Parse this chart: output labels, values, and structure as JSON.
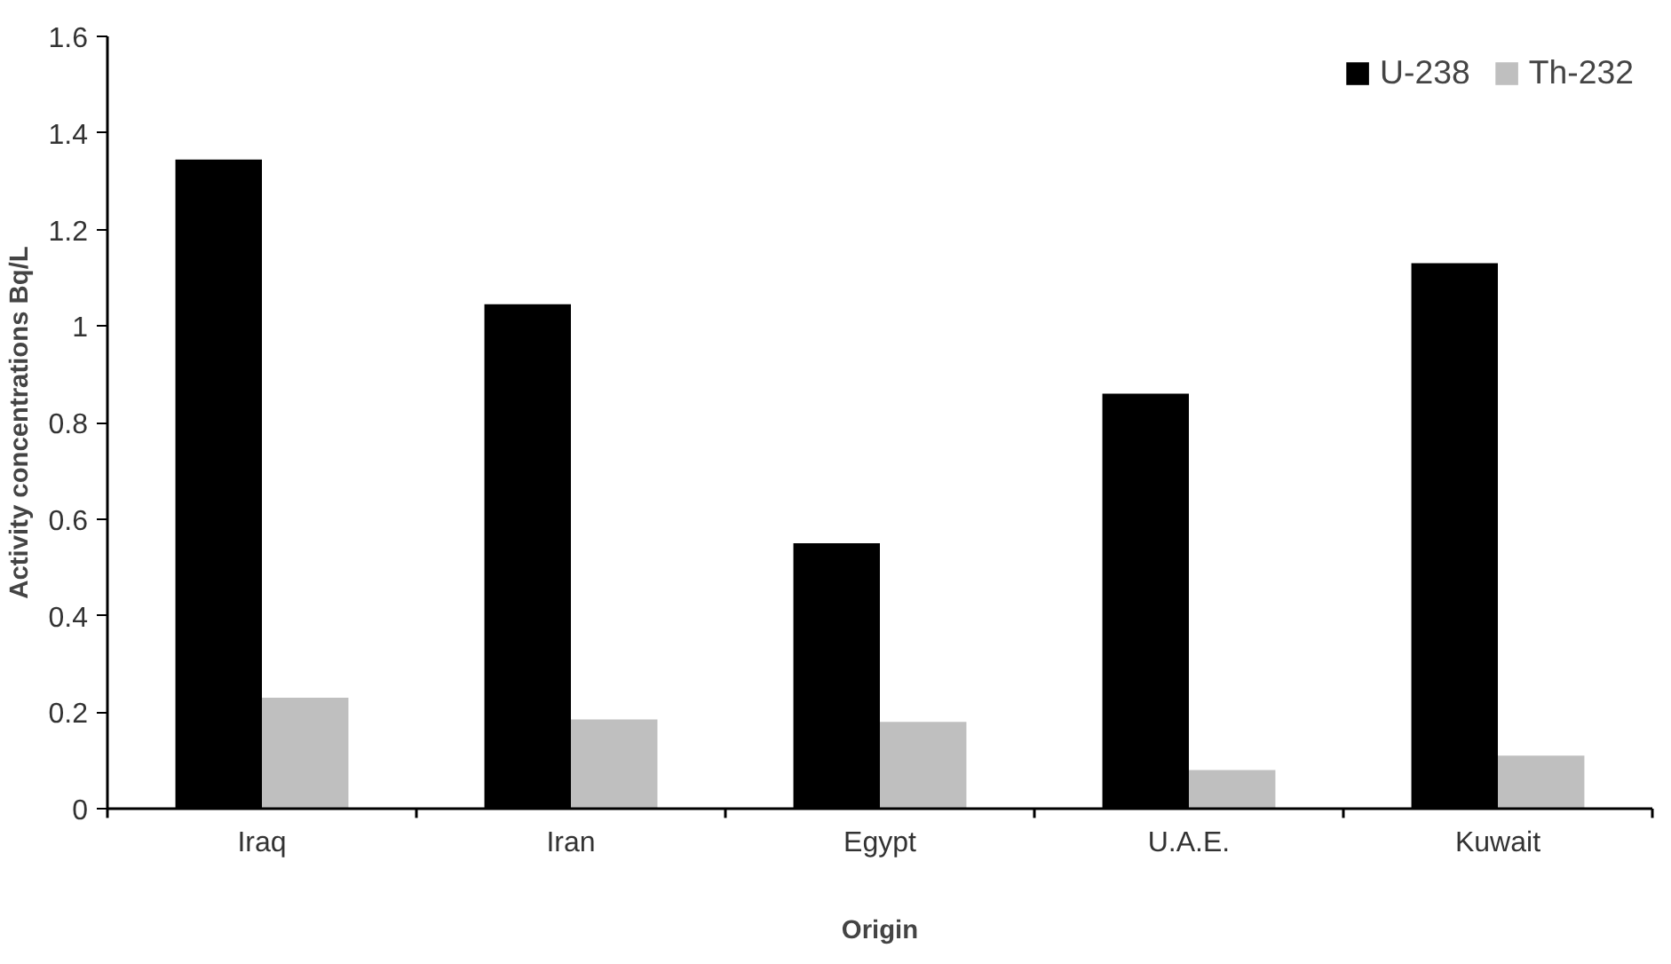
{
  "chart_data": {
    "type": "bar",
    "xlabel": "Origin",
    "ylabel": "Activity concentrations Bq/L",
    "categories": [
      "Iraq",
      "Iran",
      "Egypt",
      "U.A.E.",
      "Kuwait"
    ],
    "series": [
      {
        "name": "U-238",
        "color": "#000000",
        "values": [
          1.345,
          1.045,
          0.55,
          0.86,
          1.13
        ]
      },
      {
        "name": "Th-232",
        "color": "#bfbfbf",
        "values": [
          0.23,
          0.185,
          0.18,
          0.08,
          0.11
        ]
      }
    ],
    "ylim": [
      0,
      1.6
    ],
    "yticks": [
      0,
      0.2,
      0.4,
      0.6,
      0.8,
      1,
      1.2,
      1.4,
      1.6
    ],
    "grid": false,
    "legend": "top right"
  }
}
